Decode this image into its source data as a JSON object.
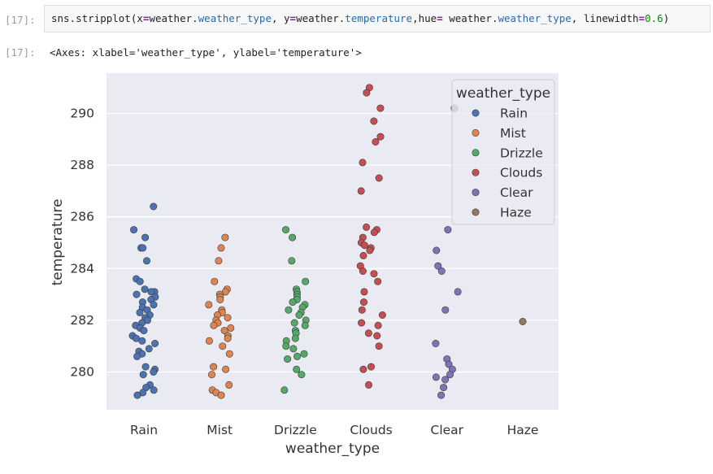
{
  "cells": {
    "input_prompt": "[17]:",
    "output_prompt": "[17]:",
    "code": {
      "fn": "sns.stripplot",
      "p1": "(x",
      "eq1": "=",
      "v1a": "weather.",
      "v1b": "weather_type",
      "p2": ", y",
      "eq2": "=",
      "v2a": "weather.",
      "v2b": "temperature",
      "p3": ",hue",
      "eq3": "=",
      "v3a": " weather.",
      "v3b": "weather_type",
      "p4": ", linewidth",
      "eq4": "=",
      "v4": "0.6",
      "p5": ")"
    },
    "output_text": "<Axes: xlabel='weather_type', ylabel='temperature'>"
  },
  "colors": {
    "Rain": "#4c72b0",
    "Mist": "#dd8452",
    "Drizzle": "#55a868",
    "Clouds": "#c44e52",
    "Clear": "#8172b3",
    "Haze": "#937860",
    "axes_bg": "#eaeaf2",
    "grid": "#ffffff"
  },
  "chart_data": {
    "type": "scatter",
    "title": "",
    "xlabel": "weather_type",
    "ylabel": "temperature",
    "categories": [
      "Rain",
      "Mist",
      "Drizzle",
      "Clouds",
      "Clear",
      "Haze"
    ],
    "ylim": [
      278.6,
      291.5
    ],
    "yticks": [
      280,
      282,
      284,
      286,
      288,
      290
    ],
    "grid": true,
    "legend": {
      "title": "weather_type",
      "placement": "top-right",
      "entries": [
        "Rain",
        "Mist",
        "Drizzle",
        "Clouds",
        "Clear",
        "Haze"
      ]
    },
    "series": [
      {
        "name": "Rain",
        "values": [
          286.4,
          285.5,
          285.2,
          284.8,
          284.8,
          284.3,
          283.6,
          283.5,
          283.2,
          283.1,
          283.1,
          283.0,
          282.9,
          282.8,
          282.7,
          282.6,
          282.5,
          282.4,
          282.3,
          282.2,
          282.1,
          282.0,
          281.9,
          281.8,
          281.7,
          281.6,
          281.4,
          281.3,
          281.2,
          281.1,
          280.9,
          280.8,
          280.7,
          280.6,
          280.2,
          280.1,
          280.0,
          279.9,
          279.5,
          279.4,
          279.3,
          279.2,
          279.1
        ]
      },
      {
        "name": "Mist",
        "values": [
          285.2,
          284.8,
          284.3,
          283.5,
          283.2,
          283.1,
          283.0,
          282.9,
          282.8,
          282.6,
          282.4,
          282.3,
          282.2,
          282.1,
          282.0,
          281.9,
          281.8,
          281.7,
          281.6,
          281.4,
          281.3,
          281.2,
          281.0,
          280.7,
          280.2,
          280.1,
          279.9,
          279.5,
          279.3,
          279.2,
          279.1
        ]
      },
      {
        "name": "Drizzle",
        "values": [
          285.5,
          285.2,
          284.3,
          283.5,
          283.2,
          283.1,
          283.0,
          282.9,
          282.8,
          282.7,
          282.6,
          282.5,
          282.4,
          282.3,
          282.2,
          282.0,
          281.9,
          281.8,
          281.6,
          281.5,
          281.3,
          281.2,
          281.0,
          280.9,
          280.7,
          280.6,
          280.5,
          280.1,
          279.9,
          279.3
        ]
      },
      {
        "name": "Clouds",
        "values": [
          291.0,
          290.8,
          290.2,
          289.7,
          289.1,
          288.9,
          288.1,
          287.5,
          287.0,
          285.6,
          285.5,
          285.4,
          285.2,
          285.0,
          284.9,
          284.8,
          284.7,
          284.5,
          284.1,
          283.9,
          283.8,
          283.5,
          283.1,
          282.7,
          282.4,
          282.2,
          281.9,
          281.8,
          281.5,
          281.4,
          281.0,
          280.2,
          280.1,
          279.5
        ]
      },
      {
        "name": "Clear",
        "values": [
          290.2,
          285.5,
          284.7,
          284.1,
          283.9,
          283.1,
          282.4,
          281.1,
          280.5,
          280.3,
          280.1,
          279.9,
          279.8,
          279.7,
          279.4,
          279.1
        ]
      },
      {
        "name": "Haze",
        "values": [
          281.95
        ]
      }
    ]
  }
}
